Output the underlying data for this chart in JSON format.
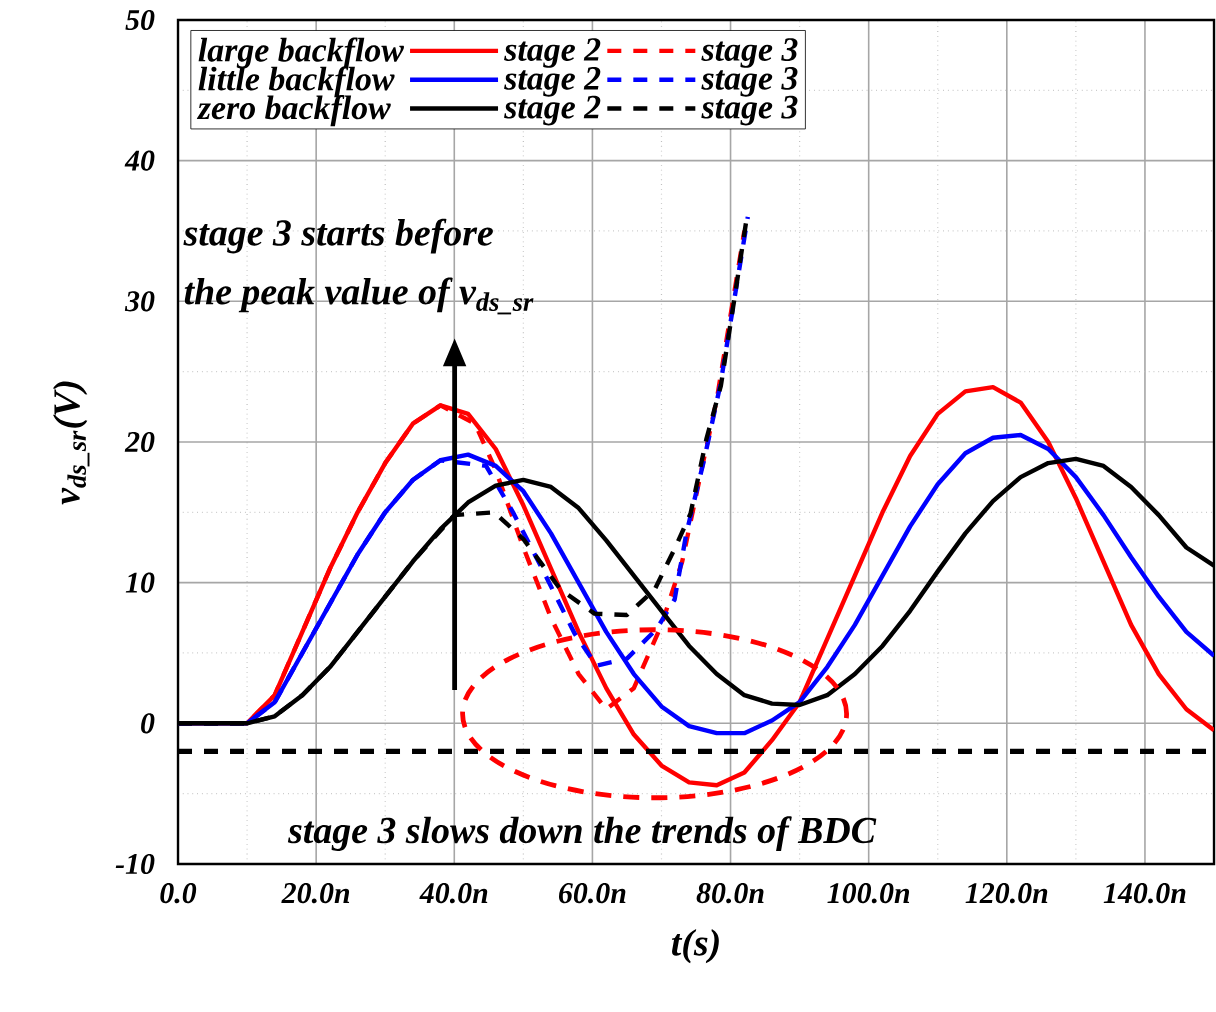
{
  "chart_data": {
    "type": "line",
    "xlabel": "t(s)",
    "ylabel": "v$_{ds_sr}$(V)",
    "xlim": [
      0,
      150
    ],
    "ylim": [
      -10,
      50
    ],
    "xticks": [
      {
        "value": 0,
        "label": "0.0"
      },
      {
        "value": 20,
        "label": "20.0n"
      },
      {
        "value": 40,
        "label": "40.0n"
      },
      {
        "value": 60,
        "label": "60.0n"
      },
      {
        "value": 80,
        "label": "80.0n"
      },
      {
        "value": 100,
        "label": "100.0n"
      },
      {
        "value": 120,
        "label": "120.0n"
      },
      {
        "value": 140,
        "label": "140.0n"
      }
    ],
    "yticks": [
      -10,
      0,
      10,
      20,
      30,
      40,
      50
    ],
    "grid": true,
    "legend": "top left",
    "marker": "none",
    "series": [
      {
        "name": "stage 2",
        "color": "#ff0000",
        "line_style": "solid",
        "x": [
          0,
          10,
          14,
          18,
          22,
          26,
          30,
          34,
          38,
          42,
          46,
          50,
          54,
          58,
          62,
          66,
          70,
          74,
          78,
          82,
          86,
          90,
          94,
          98,
          102,
          106,
          110,
          114,
          118,
          122,
          126,
          130,
          134,
          138,
          142,
          146,
          150
        ],
        "values": [
          0,
          0,
          2,
          6.5,
          11,
          15,
          18.5,
          21.3,
          22.6,
          22,
          19.5,
          15.5,
          11,
          6.5,
          2.5,
          -0.8,
          -3,
          -4.2,
          -4.4,
          -3.5,
          -1.2,
          1.5,
          6,
          10.5,
          15,
          19,
          22,
          23.6,
          23.9,
          22.8,
          20,
          16,
          11.5,
          7,
          3.5,
          1,
          -0.5
        ]
      },
      {
        "name": "stage 3",
        "color": "#ff0000",
        "line_style": "dashed",
        "x": [
          0,
          10,
          14,
          18,
          22,
          26,
          30,
          34,
          38,
          43,
          46,
          50,
          54,
          58,
          62,
          66,
          70,
          73,
          76,
          78,
          80,
          82
        ],
        "values": [
          0,
          0,
          2,
          6.5,
          11,
          15,
          18.5,
          21.3,
          22.6,
          21.3,
          18,
          12.5,
          7.5,
          3.5,
          1,
          2.5,
          7,
          11.5,
          18.5,
          23,
          29,
          35
        ]
      },
      {
        "name": "stage 2",
        "color": "#0000ff",
        "line_style": "solid",
        "x": [
          0,
          10,
          14,
          18,
          22,
          26,
          30,
          34,
          38,
          42,
          46,
          50,
          54,
          58,
          62,
          66,
          70,
          74,
          78,
          82,
          86,
          90,
          94,
          98,
          102,
          106,
          110,
          114,
          118,
          122,
          126,
          130,
          134,
          138,
          142,
          146,
          150
        ],
        "values": [
          0,
          0,
          1.5,
          5,
          8.5,
          12,
          15,
          17.3,
          18.7,
          19.1,
          18.3,
          16.5,
          13.5,
          10,
          6.5,
          3.5,
          1.2,
          -0.2,
          -0.7,
          -0.7,
          0.2,
          1.5,
          4,
          7,
          10.5,
          14,
          17,
          19.2,
          20.3,
          20.5,
          19.5,
          17.5,
          14.8,
          11.8,
          9,
          6.5,
          4.8
        ]
      },
      {
        "name": "stage 3",
        "color": "#0000ff",
        "line_style": "dashed",
        "x": [
          0,
          10,
          14,
          18,
          22,
          26,
          30,
          34,
          38,
          44.6,
          48.5,
          52.5,
          57.4,
          60.6,
          65,
          69.3,
          71.9,
          73.6,
          76.2,
          78.5,
          80.5,
          82.5
        ],
        "values": [
          0,
          0,
          1.5,
          5,
          8.5,
          12,
          15,
          17.3,
          18.7,
          18.3,
          15,
          11.2,
          6.4,
          4.1,
          4.6,
          6.7,
          8.8,
          13.5,
          18.8,
          24,
          30,
          36
        ]
      },
      {
        "name": "stage 2",
        "color": "#000000",
        "line_style": "solid",
        "x": [
          0,
          10,
          14,
          18,
          22,
          26,
          30,
          34,
          38,
          42,
          46,
          50,
          54,
          58,
          62,
          66,
          70,
          74,
          78,
          82,
          86,
          90,
          94,
          98,
          102,
          106,
          110,
          114,
          118,
          122,
          126,
          130,
          134,
          138,
          142,
          146,
          150
        ],
        "values": [
          0,
          0,
          0.5,
          2,
          4,
          6.5,
          9,
          11.5,
          13.8,
          15.7,
          16.9,
          17.3,
          16.8,
          15.3,
          13,
          10.5,
          8,
          5.5,
          3.5,
          2,
          1.4,
          1.3,
          2,
          3.5,
          5.5,
          8,
          10.8,
          13.5,
          15.8,
          17.5,
          18.5,
          18.8,
          18.3,
          16.8,
          14.8,
          12.5,
          11.2
        ]
      },
      {
        "name": "stage 3",
        "color": "#000000",
        "line_style": "dashed",
        "x": [
          0,
          10,
          14,
          18,
          22,
          26,
          30,
          34,
          40,
          45.8,
          50,
          55.4,
          60.3,
          65,
          69,
          71.9,
          74.2,
          76.5,
          78.6,
          80.5,
          82.3
        ],
        "values": [
          0,
          0,
          0.5,
          2,
          4,
          6.5,
          9,
          11.5,
          14.8,
          15,
          13.1,
          9.5,
          7.8,
          7.7,
          9.5,
          12.4,
          14.9,
          20.2,
          24,
          30,
          35.8
        ]
      }
    ],
    "ref_lines": [
      {
        "axis": "y",
        "value": -2,
        "color": "#000000",
        "line_style": "dashed"
      }
    ],
    "annotations": [
      "large backflow",
      "little backflow",
      "zero backflow",
      "stage 3 starts before",
      "the peak value of v$_{ds_sr}$",
      "stage 3 slows down the trends of BDC"
    ]
  }
}
